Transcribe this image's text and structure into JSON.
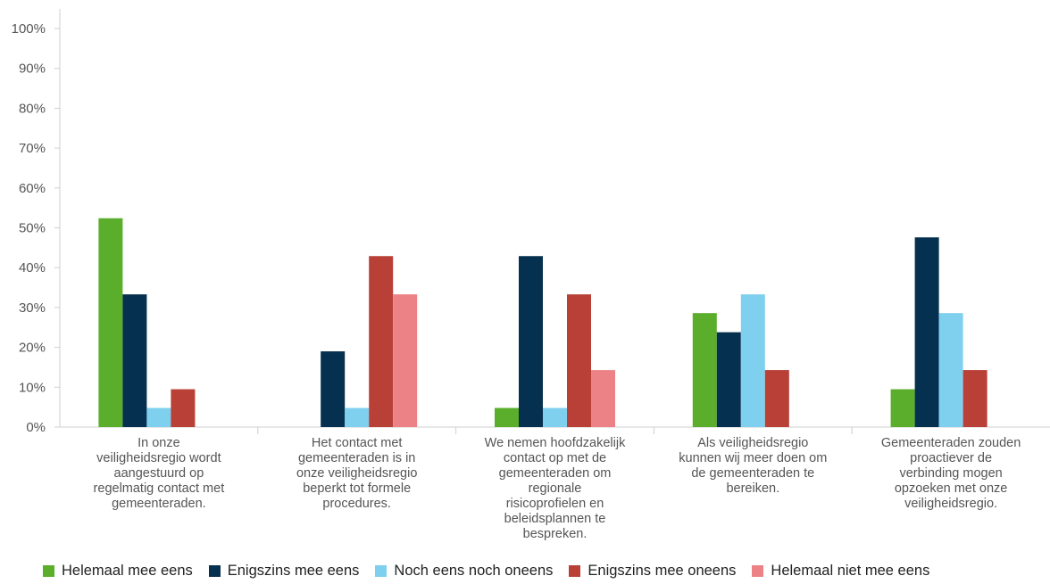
{
  "chart_data": {
    "type": "bar",
    "categories": [
      [
        "In onze",
        "veiligheidsregio wordt",
        "aangestuurd op",
        "regelmatig contact met",
        "gemeenteraden."
      ],
      [
        "Het contact met",
        "gemeenteraden is in",
        "onze veiligheidsregio",
        "beperkt tot formele",
        "procedures."
      ],
      [
        "We nemen hoofdzakelijk",
        "contact op met de",
        "gemeenteraden om",
        "regionale",
        "risicoprofielen en",
        "beleidsplannen te",
        "bespreken."
      ],
      [
        "Als veiligheidsregio",
        "kunnen wij meer doen om",
        "de gemeenteraden te",
        "bereiken."
      ],
      [
        "Gemeenteraden zouden",
        "proactiever de",
        "verbinding mogen",
        "opzoeken met onze",
        "veiligheidsregio."
      ]
    ],
    "series": [
      {
        "name": "Helemaal mee eens",
        "color": "#5aae2b",
        "values": [
          52.4,
          0,
          4.8,
          28.6,
          9.5
        ]
      },
      {
        "name": "Enigszins mee eens",
        "color": "#06304f",
        "values": [
          33.3,
          19.0,
          42.9,
          23.8,
          47.6
        ]
      },
      {
        "name": "Noch eens noch oneens",
        "color": "#7fcfee",
        "values": [
          4.8,
          4.8,
          4.8,
          33.3,
          28.6
        ]
      },
      {
        "name": "Enigszins mee oneens",
        "color": "#b84036",
        "values": [
          9.5,
          42.9,
          33.3,
          14.3,
          14.3
        ]
      },
      {
        "name": "Helemaal niet mee eens",
        "color": "#ec8286",
        "values": [
          0,
          33.3,
          14.3,
          0,
          0
        ]
      }
    ],
    "yticks": [
      "0%",
      "10%",
      "20%",
      "30%",
      "40%",
      "50%",
      "60%",
      "70%",
      "80%",
      "90%",
      "100%"
    ],
    "ylim": [
      0,
      100
    ],
    "legend_position": "bottom",
    "grid": false
  }
}
